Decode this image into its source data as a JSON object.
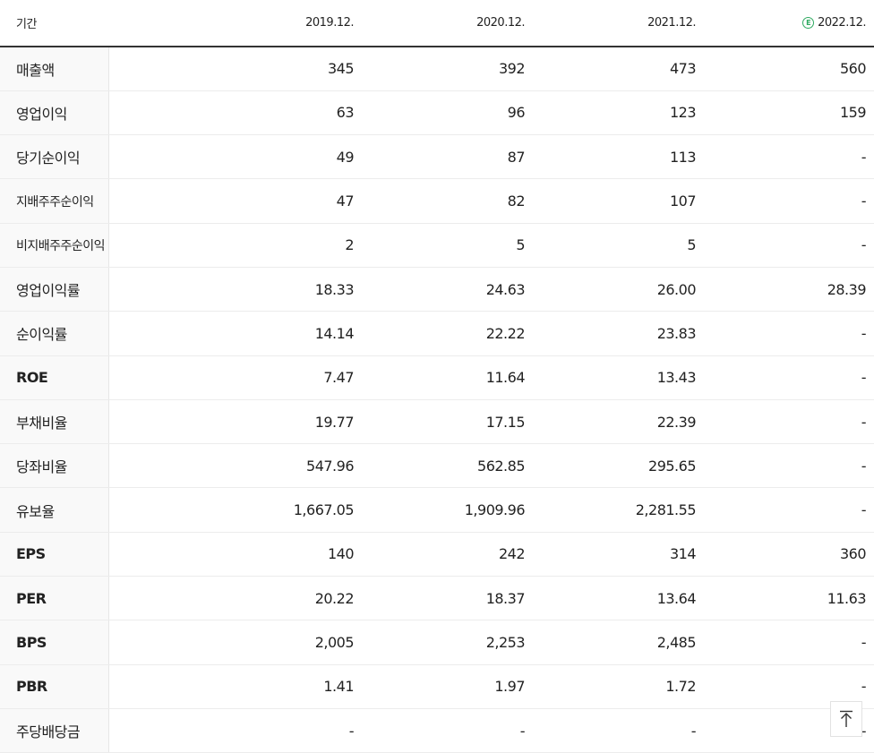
{
  "table": {
    "headers": {
      "label": "기간",
      "y2019": "2019.12.",
      "y2020": "2020.12.",
      "y2021": "2021.12.",
      "y2022": "2022.12.",
      "estimate_mark": "E"
    },
    "rows": [
      {
        "label": "매출액",
        "values": [
          "345",
          "392",
          "473",
          "560"
        ]
      },
      {
        "label": "영업이익",
        "values": [
          "63",
          "96",
          "123",
          "159"
        ]
      },
      {
        "label": "당기순이익",
        "values": [
          "49",
          "87",
          "113",
          "-"
        ]
      },
      {
        "label": "지배주주순이익",
        "values": [
          "47",
          "82",
          "107",
          "-"
        ]
      },
      {
        "label": "비지배주주순이익",
        "values": [
          "2",
          "5",
          "5",
          "-"
        ]
      },
      {
        "label": "영업이익률",
        "values": [
          "18.33",
          "24.63",
          "26.00",
          "28.39"
        ]
      },
      {
        "label": "순이익률",
        "values": [
          "14.14",
          "22.22",
          "23.83",
          "-"
        ]
      },
      {
        "label": "ROE",
        "values": [
          "7.47",
          "11.64",
          "13.43",
          "-"
        ]
      },
      {
        "label": "부채비율",
        "values": [
          "19.77",
          "17.15",
          "22.39",
          "-"
        ]
      },
      {
        "label": "당좌비율",
        "values": [
          "547.96",
          "562.85",
          "295.65",
          "-"
        ]
      },
      {
        "label": "유보율",
        "values": [
          "1,667.05",
          "1,909.96",
          "2,281.55",
          "-"
        ]
      },
      {
        "label": "EPS",
        "values": [
          "140",
          "242",
          "314",
          "360"
        ]
      },
      {
        "label": "PER",
        "values": [
          "20.22",
          "18.37",
          "13.64",
          "11.63"
        ]
      },
      {
        "label": "BPS",
        "values": [
          "2,005",
          "2,253",
          "2,485",
          "-"
        ]
      },
      {
        "label": "PBR",
        "values": [
          "1.41",
          "1.97",
          "1.72",
          "-"
        ]
      },
      {
        "label": "주당배당금",
        "values": [
          "-",
          "-",
          "-",
          "-"
        ]
      }
    ]
  },
  "scroll_top_button": {
    "icon": "arrow-up-to-top-icon"
  },
  "colors": {
    "estimate": "#2eaa60",
    "label_bg": "#f9f9f9",
    "header_rule": "#333333"
  }
}
